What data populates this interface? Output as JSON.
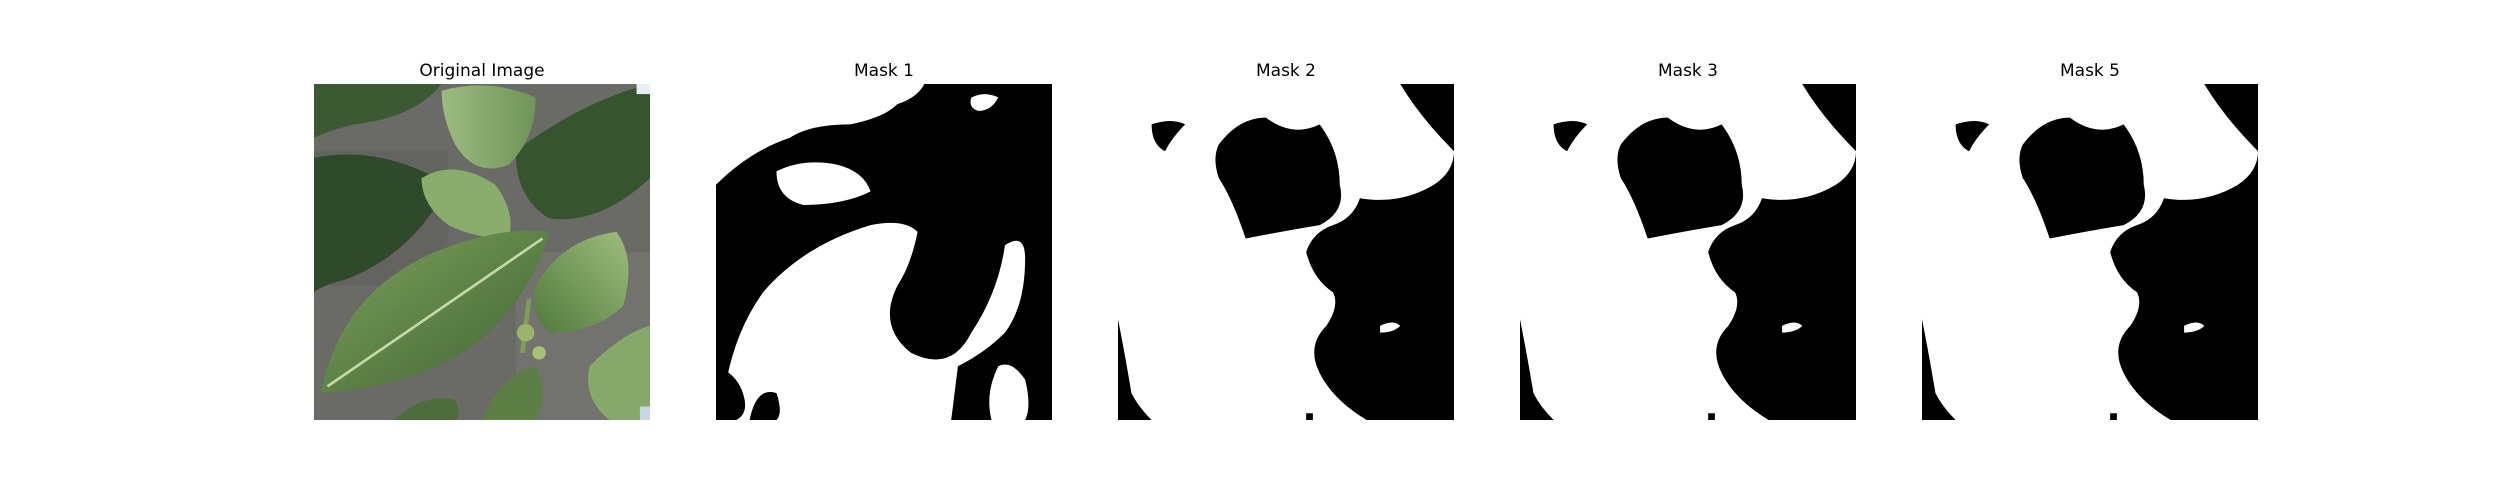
{
  "figure": {
    "panels": [
      {
        "title": "Original Image",
        "kind": "photo",
        "subject": "leaves"
      },
      {
        "title": "Mask 1",
        "kind": "mask",
        "variant": "mask-a"
      },
      {
        "title": "Mask 2",
        "kind": "mask",
        "variant": "mask-b"
      },
      {
        "title": "Mask 3",
        "kind": "mask",
        "variant": "mask-b"
      },
      {
        "title": "Mask 5",
        "kind": "mask",
        "variant": "mask-b"
      }
    ]
  },
  "colors": {
    "background": "#ffffff",
    "mask_foreground": "#ffffff",
    "mask_background": "#000000",
    "leaf_dark": "#2f4a2a",
    "leaf_mid": "#5a7f45",
    "leaf_light": "#a9c58c",
    "ground": "#6b6b68"
  }
}
